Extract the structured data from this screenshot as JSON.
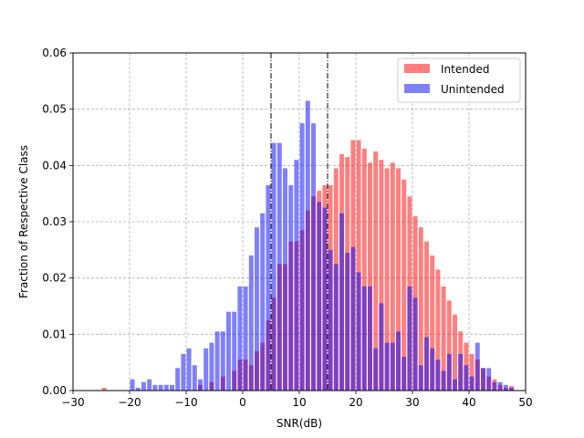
{
  "chart_data": {
    "type": "bar",
    "xlabel": "SNR(dB)",
    "ylabel": "Fraction of Respective Class",
    "xlim": [
      -30,
      50
    ],
    "ylim": [
      0,
      0.06
    ],
    "x_ticks": [
      -30,
      -20,
      -10,
      0,
      10,
      20,
      30,
      40,
      50
    ],
    "y_ticks": [
      0.0,
      0.01,
      0.02,
      0.03,
      0.04,
      0.05,
      0.06
    ],
    "x_tick_labels": [
      "−30",
      "−20",
      "−10",
      "0",
      "10",
      "20",
      "30",
      "40",
      "50"
    ],
    "y_tick_labels": [
      "0.00",
      "0.01",
      "0.02",
      "0.03",
      "0.04",
      "0.05",
      "0.06"
    ],
    "grid": true,
    "legend_position": "top-right",
    "vlines": [
      5,
      15
    ],
    "series": [
      {
        "name": "Intended",
        "color": "#ff0000",
        "opacity": 0.5,
        "bin_width": 1,
        "bins": [
          [
            -25,
            0.0005
          ],
          [
            -8,
            0.001
          ],
          [
            -6,
            0.0015
          ],
          [
            -4,
            0.0025
          ],
          [
            -2,
            0.0035
          ],
          [
            -1,
            0.0055
          ],
          [
            0,
            0.0055
          ],
          [
            1,
            0.0045
          ],
          [
            2,
            0.007
          ],
          [
            3,
            0.0085
          ],
          [
            4,
            0.0125
          ],
          [
            5,
            0.0165
          ],
          [
            6,
            0.0225
          ],
          [
            7,
            0.0225
          ],
          [
            8,
            0.0265
          ],
          [
            9,
            0.0265
          ],
          [
            10,
            0.0285
          ],
          [
            11,
            0.032
          ],
          [
            12,
            0.0345
          ],
          [
            13,
            0.0355
          ],
          [
            14,
            0.0365
          ],
          [
            15,
            0.0365
          ],
          [
            16,
            0.0395
          ],
          [
            17,
            0.042
          ],
          [
            18,
            0.0415
          ],
          [
            19,
            0.0445
          ],
          [
            20,
            0.0445
          ],
          [
            21,
            0.043
          ],
          [
            22,
            0.0405
          ],
          [
            23,
            0.0425
          ],
          [
            24,
            0.041
          ],
          [
            25,
            0.0395
          ],
          [
            26,
            0.0405
          ],
          [
            27,
            0.0395
          ],
          [
            28,
            0.0375
          ],
          [
            29,
            0.0345
          ],
          [
            30,
            0.031
          ],
          [
            31,
            0.029
          ],
          [
            32,
            0.0265
          ],
          [
            33,
            0.024
          ],
          [
            34,
            0.0215
          ],
          [
            35,
            0.0185
          ],
          [
            36,
            0.016
          ],
          [
            37,
            0.0135
          ],
          [
            38,
            0.0105
          ],
          [
            39,
            0.0085
          ],
          [
            40,
            0.0065
          ],
          [
            41,
            0.0055
          ],
          [
            42,
            0.004
          ],
          [
            43,
            0.0025
          ],
          [
            44,
            0.002
          ],
          [
            45,
            0.001
          ],
          [
            46,
            0.0005
          ],
          [
            47,
            0.0008
          ]
        ]
      },
      {
        "name": "Unintended",
        "color": "#0000ff",
        "opacity": 0.5,
        "bin_width": 1,
        "bins": [
          [
            -20,
            0.002
          ],
          [
            -19,
            0.0005
          ],
          [
            -18,
            0.0015
          ],
          [
            -17,
            0.002
          ],
          [
            -16,
            0.001
          ],
          [
            -15,
            0.001
          ],
          [
            -14,
            0.001
          ],
          [
            -13,
            0.001
          ],
          [
            -12,
            0.004
          ],
          [
            -11,
            0.0065
          ],
          [
            -10,
            0.0075
          ],
          [
            -9,
            0.0045
          ],
          [
            -8,
            0.002
          ],
          [
            -7,
            0.0075
          ],
          [
            -6,
            0.0085
          ],
          [
            -5,
            0.0105
          ],
          [
            -4,
            0.0105
          ],
          [
            -3,
            0.014
          ],
          [
            -2,
            0.014
          ],
          [
            -1,
            0.0185
          ],
          [
            0,
            0.0185
          ],
          [
            1,
            0.024
          ],
          [
            2,
            0.029
          ],
          [
            3,
            0.0315
          ],
          [
            4,
            0.0365
          ],
          [
            5,
            0.044
          ],
          [
            6,
            0.044
          ],
          [
            7,
            0.0395
          ],
          [
            8,
            0.0365
          ],
          [
            9,
            0.041
          ],
          [
            10,
            0.0475
          ],
          [
            11,
            0.0515
          ],
          [
            12,
            0.0475
          ],
          [
            13,
            0.0335
          ],
          [
            14,
            0.0325
          ],
          [
            15,
            0.025
          ],
          [
            16,
            0.0225
          ],
          [
            17,
            0.0315
          ],
          [
            18,
            0.0245
          ],
          [
            19,
            0.0255
          ],
          [
            20,
            0.021
          ],
          [
            21,
            0.0185
          ],
          [
            22,
            0.0185
          ],
          [
            23,
            0.0075
          ],
          [
            24,
            0.0155
          ],
          [
            25,
            0.0085
          ],
          [
            26,
            0.0085
          ],
          [
            27,
            0.0105
          ],
          [
            28,
            0.006
          ],
          [
            29,
            0.0185
          ],
          [
            30,
            0.0165
          ],
          [
            31,
            0.0045
          ],
          [
            32,
            0.0095
          ],
          [
            33,
            0.0075
          ],
          [
            34,
            0.0055
          ],
          [
            35,
            0.0035
          ],
          [
            36,
            0.0065
          ],
          [
            37,
            0.002
          ],
          [
            38,
            0.0065
          ],
          [
            39,
            0.0045
          ],
          [
            40,
            0.0025
          ],
          [
            41,
            0.0085
          ],
          [
            42,
            0.004
          ],
          [
            43,
            0.004
          ],
          [
            44,
            0.0015
          ],
          [
            45,
            0.0015
          ],
          [
            46,
            0.001
          ],
          [
            47,
            0.0005
          ]
        ]
      }
    ]
  }
}
